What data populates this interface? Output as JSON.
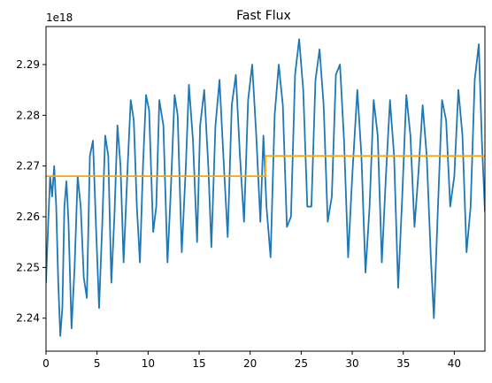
{
  "chart_data": {
    "type": "line",
    "title": "Fast Flux",
    "xlabel": "",
    "ylabel": "",
    "y_offset_text": "1e18",
    "xlim": [
      0,
      43
    ],
    "ylim": [
      2.2335,
      2.2975
    ],
    "x_ticks": [
      0,
      5,
      10,
      15,
      20,
      25,
      30,
      35,
      40
    ],
    "x_tick_labels": [
      "0",
      "5",
      "10",
      "15",
      "20",
      "25",
      "30",
      "35",
      "40"
    ],
    "y_ticks": [
      2.24,
      2.25,
      2.26,
      2.27,
      2.28,
      2.29
    ],
    "y_tick_labels": [
      "2.24",
      "2.25",
      "2.26",
      "2.27",
      "2.28",
      "2.29"
    ],
    "grid": false,
    "legend": "none",
    "series": [
      {
        "color": "#1f77b4",
        "style": "oscillating",
        "points": [
          [
            0.0,
            2.247
          ],
          [
            0.2,
            2.258
          ],
          [
            0.4,
            2.268
          ],
          [
            0.6,
            2.264
          ],
          [
            0.8,
            2.27
          ],
          [
            1.0,
            2.262
          ],
          [
            1.2,
            2.247
          ],
          [
            1.4,
            2.2365
          ],
          [
            1.6,
            2.242
          ],
          [
            1.8,
            2.262
          ],
          [
            2.0,
            2.267
          ],
          [
            2.2,
            2.259
          ],
          [
            2.5,
            2.238
          ],
          [
            2.8,
            2.25
          ],
          [
            3.1,
            2.268
          ],
          [
            3.4,
            2.262
          ],
          [
            3.7,
            2.248
          ],
          [
            4.0,
            2.244
          ],
          [
            4.3,
            2.272
          ],
          [
            4.6,
            2.275
          ],
          [
            4.9,
            2.258
          ],
          [
            5.2,
            2.242
          ],
          [
            5.5,
            2.258
          ],
          [
            5.8,
            2.276
          ],
          [
            6.1,
            2.272
          ],
          [
            6.4,
            2.247
          ],
          [
            6.7,
            2.26
          ],
          [
            7.0,
            2.278
          ],
          [
            7.3,
            2.27
          ],
          [
            7.6,
            2.251
          ],
          [
            8.0,
            2.27
          ],
          [
            8.3,
            2.283
          ],
          [
            8.6,
            2.279
          ],
          [
            8.9,
            2.262
          ],
          [
            9.2,
            2.251
          ],
          [
            9.5,
            2.27
          ],
          [
            9.8,
            2.284
          ],
          [
            10.1,
            2.281
          ],
          [
            10.5,
            2.257
          ],
          [
            10.8,
            2.262
          ],
          [
            11.1,
            2.283
          ],
          [
            11.5,
            2.278
          ],
          [
            11.9,
            2.251
          ],
          [
            12.2,
            2.264
          ],
          [
            12.6,
            2.284
          ],
          [
            12.9,
            2.28
          ],
          [
            13.3,
            2.253
          ],
          [
            13.7,
            2.27
          ],
          [
            14.0,
            2.286
          ],
          [
            14.4,
            2.275
          ],
          [
            14.8,
            2.255
          ],
          [
            15.1,
            2.278
          ],
          [
            15.5,
            2.285
          ],
          [
            15.9,
            2.27
          ],
          [
            16.2,
            2.254
          ],
          [
            16.6,
            2.278
          ],
          [
            17.0,
            2.287
          ],
          [
            17.4,
            2.271
          ],
          [
            17.8,
            2.256
          ],
          [
            18.2,
            2.282
          ],
          [
            18.6,
            2.288
          ],
          [
            19.0,
            2.272
          ],
          [
            19.4,
            2.259
          ],
          [
            19.8,
            2.283
          ],
          [
            20.2,
            2.29
          ],
          [
            20.6,
            2.276
          ],
          [
            21.0,
            2.259
          ],
          [
            21.3,
            2.276
          ],
          [
            21.6,
            2.262
          ],
          [
            22.0,
            2.252
          ],
          [
            22.4,
            2.28
          ],
          [
            22.8,
            2.29
          ],
          [
            23.2,
            2.282
          ],
          [
            23.6,
            2.258
          ],
          [
            24.0,
            2.26
          ],
          [
            24.4,
            2.288
          ],
          [
            24.8,
            2.295
          ],
          [
            25.2,
            2.285
          ],
          [
            25.6,
            2.262
          ],
          [
            26.0,
            2.262
          ],
          [
            26.4,
            2.287
          ],
          [
            26.8,
            2.293
          ],
          [
            27.2,
            2.282
          ],
          [
            27.6,
            2.259
          ],
          [
            28.0,
            2.264
          ],
          [
            28.4,
            2.288
          ],
          [
            28.8,
            2.29
          ],
          [
            29.2,
            2.275
          ],
          [
            29.6,
            2.252
          ],
          [
            30.0,
            2.268
          ],
          [
            30.5,
            2.285
          ],
          [
            30.9,
            2.272
          ],
          [
            31.3,
            2.249
          ],
          [
            31.7,
            2.262
          ],
          [
            32.1,
            2.283
          ],
          [
            32.5,
            2.276
          ],
          [
            32.9,
            2.251
          ],
          [
            33.3,
            2.268
          ],
          [
            33.7,
            2.283
          ],
          [
            34.1,
            2.272
          ],
          [
            34.5,
            2.246
          ],
          [
            34.9,
            2.264
          ],
          [
            35.3,
            2.284
          ],
          [
            35.7,
            2.276
          ],
          [
            36.1,
            2.258
          ],
          [
            36.5,
            2.269
          ],
          [
            36.9,
            2.282
          ],
          [
            37.3,
            2.272
          ],
          [
            37.7,
            2.252
          ],
          [
            38.0,
            2.24
          ],
          [
            38.4,
            2.262
          ],
          [
            38.8,
            2.283
          ],
          [
            39.2,
            2.279
          ],
          [
            39.6,
            2.262
          ],
          [
            40.0,
            2.268
          ],
          [
            40.4,
            2.285
          ],
          [
            40.8,
            2.276
          ],
          [
            41.2,
            2.253
          ],
          [
            41.6,
            2.262
          ],
          [
            42.0,
            2.287
          ],
          [
            42.4,
            2.294
          ],
          [
            42.7,
            2.275
          ],
          [
            43.0,
            2.261
          ]
        ]
      },
      {
        "color": "#ffa500",
        "style": "step",
        "points": [
          [
            0,
            2.268
          ],
          [
            21.5,
            2.268
          ],
          [
            21.5,
            2.272
          ],
          [
            43,
            2.272
          ]
        ]
      }
    ]
  }
}
